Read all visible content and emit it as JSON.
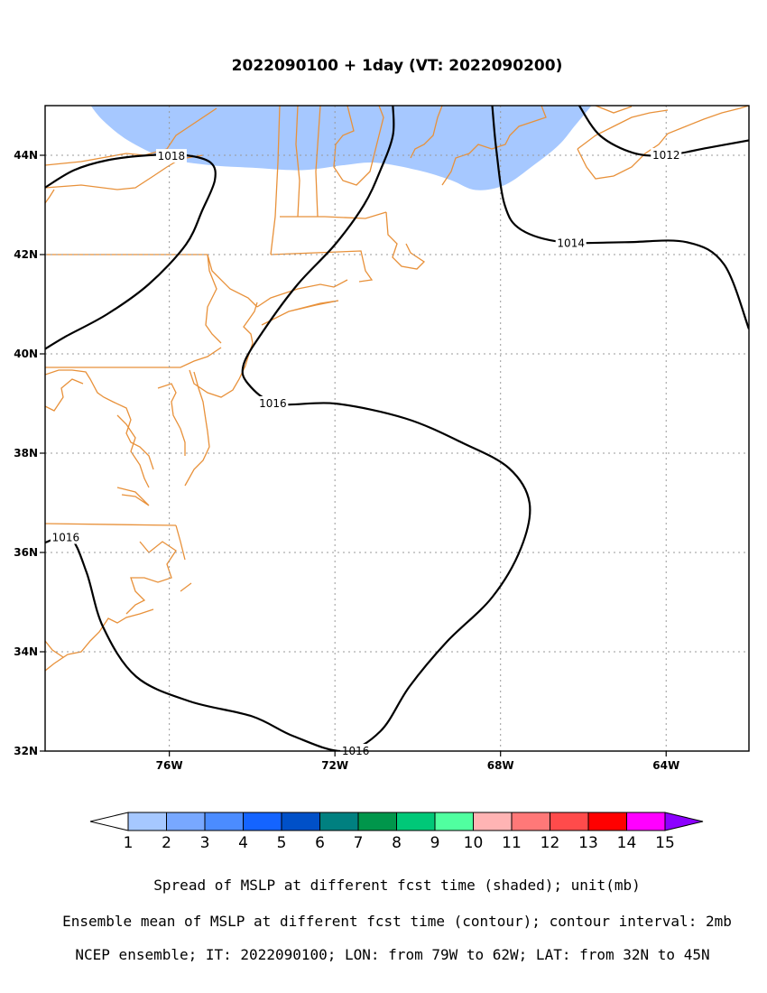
{
  "title": "2022090100 + 1day (VT: 2022090200)",
  "map": {
    "lon_range": [
      -79,
      -62
    ],
    "lat_range": [
      32,
      45
    ],
    "x_ticks": [
      {
        "lon": -76,
        "label": "76W"
      },
      {
        "lon": -72,
        "label": "72W"
      },
      {
        "lon": -68,
        "label": "68W"
      },
      {
        "lon": -64,
        "label": "64W"
      }
    ],
    "y_ticks": [
      {
        "lat": 44,
        "label": "44N"
      },
      {
        "lat": 42,
        "label": "42N"
      },
      {
        "lat": 40,
        "label": "40N"
      },
      {
        "lat": 38,
        "label": "38N"
      },
      {
        "lat": 36,
        "label": "36N"
      },
      {
        "lat": 34,
        "label": "34N"
      },
      {
        "lat": 32,
        "label": "32N"
      }
    ],
    "grid": "dotted gray",
    "coastline_color": "#e8913a",
    "contour_color": "#000000",
    "contours": [
      {
        "label": "1018",
        "path": [
          [
            -79,
            43.35
          ],
          [
            -78.3,
            43.7
          ],
          [
            -77.5,
            43.9
          ],
          [
            -76.5,
            44.0
          ],
          [
            -75.6,
            44.0
          ],
          [
            -75.0,
            43.85
          ],
          [
            -74.9,
            43.5
          ],
          [
            -75.2,
            42.9
          ],
          [
            -75.6,
            42.2
          ],
          [
            -76.5,
            41.4
          ],
          [
            -77.5,
            40.8
          ],
          [
            -78.5,
            40.35
          ],
          [
            -79,
            40.1
          ]
        ]
      },
      {
        "label": "1016",
        "path": [
          [
            -70.6,
            45
          ],
          [
            -70.6,
            44.4
          ],
          [
            -70.9,
            43.7
          ],
          [
            -71.3,
            43.0
          ],
          [
            -72.0,
            42.2
          ],
          [
            -72.9,
            41.4
          ],
          [
            -73.7,
            40.5
          ],
          [
            -74.2,
            39.8
          ],
          [
            -74.1,
            39.4
          ],
          [
            -73.4,
            39.0
          ],
          [
            -72.0,
            39.0
          ],
          [
            -70.3,
            38.7
          ],
          [
            -68.9,
            38.2
          ],
          [
            -67.8,
            37.7
          ],
          [
            -67.3,
            37.0
          ],
          [
            -67.5,
            36.1
          ],
          [
            -68.2,
            35.1
          ],
          [
            -69.3,
            34.2
          ],
          [
            -70.2,
            33.3
          ],
          [
            -70.9,
            32.4
          ],
          [
            -71.8,
            32.0
          ],
          [
            -73.0,
            32.3
          ],
          [
            -74.0,
            32.7
          ],
          [
            -75.5,
            33.0
          ],
          [
            -76.8,
            33.5
          ],
          [
            -77.6,
            34.5
          ],
          [
            -78.0,
            35.6
          ],
          [
            -78.4,
            36.3
          ],
          [
            -79,
            36.2
          ]
        ]
      },
      {
        "label": "1014",
        "path": [
          [
            -68.2,
            45
          ],
          [
            -68.1,
            44.1
          ],
          [
            -67.9,
            43.0
          ],
          [
            -67.5,
            42.5
          ],
          [
            -66.5,
            42.25
          ],
          [
            -65.0,
            42.25
          ],
          [
            -63.5,
            42.25
          ],
          [
            -62.6,
            41.8
          ],
          [
            -62.0,
            40.5
          ]
        ]
      },
      {
        "label": "1012",
        "path": [
          [
            -66.1,
            45
          ],
          [
            -65.6,
            44.4
          ],
          [
            -64.8,
            44.05
          ],
          [
            -64.0,
            44.0
          ],
          [
            -63.0,
            44.15
          ],
          [
            -62.0,
            44.3
          ]
        ]
      }
    ],
    "contour_labels": [
      {
        "text": "1018",
        "lon": -75.95,
        "lat": 43.98
      },
      {
        "text": "1016",
        "lon": -73.5,
        "lat": 39.0
      },
      {
        "text": "1014",
        "lon": -66.3,
        "lat": 42.23
      },
      {
        "text": "1012",
        "lon": -64.0,
        "lat": 44.0
      },
      {
        "text": "1016",
        "lon": -78.5,
        "lat": 36.3
      },
      {
        "text": "1016",
        "lon": -71.5,
        "lat": 32.0
      }
    ],
    "shaded_region": {
      "level": "1-2 mb",
      "color": "#a6c8ff",
      "path": [
        [
          -77.9,
          45
        ],
        [
          -77.6,
          44.7
        ],
        [
          -77.0,
          44.3
        ],
        [
          -76.1,
          43.95
        ],
        [
          -75.0,
          43.8
        ],
        [
          -74.0,
          43.75
        ],
        [
          -72.8,
          43.7
        ],
        [
          -71.8,
          43.8
        ],
        [
          -71.0,
          43.85
        ],
        [
          -70.0,
          43.7
        ],
        [
          -69.2,
          43.5
        ],
        [
          -68.6,
          43.3
        ],
        [
          -67.9,
          43.4
        ],
        [
          -67.2,
          43.8
        ],
        [
          -66.6,
          44.2
        ],
        [
          -66.2,
          44.6
        ],
        [
          -65.8,
          45
        ]
      ]
    }
  },
  "colorbar": {
    "labels": [
      "1",
      "2",
      "3",
      "4",
      "5",
      "6",
      "7",
      "8",
      "9",
      "10",
      "11",
      "12",
      "13",
      "14",
      "15"
    ],
    "colors": [
      "#a6c8ff",
      "#78a8ff",
      "#4b8cff",
      "#1464ff",
      "#0050c8",
      "#008080",
      "#00964b",
      "#00c878",
      "#50ffa0",
      "#ffb4b4",
      "#ff7878",
      "#ff4b4b",
      "#ff0000",
      "#ff00ff",
      "#8c00ff"
    ],
    "under_color": "#ffffff",
    "over_color": "#8c00ff"
  },
  "captions": [
    "Spread of MSLP at different fcst time (shaded); unit(mb)",
    "Ensemble mean of MSLP at different fcst time (contour); contour interval: 2mb",
    "NCEP ensemble; IT: 2022090100; LON: from 79W to 62W; LAT: from 32N to 45N"
  ]
}
